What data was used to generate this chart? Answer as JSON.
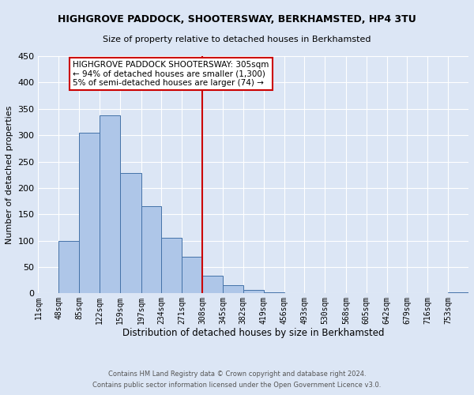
{
  "title": "HIGHGROVE PADDOCK, SHOOTERSWAY, BERKHAMSTED, HP4 3TU",
  "subtitle": "Size of property relative to detached houses in Berkhamsted",
  "xlabel": "Distribution of detached houses by size in Berkhamsted",
  "ylabel": "Number of detached properties",
  "bin_labels": [
    "11sqm",
    "48sqm",
    "85sqm",
    "122sqm",
    "159sqm",
    "197sqm",
    "234sqm",
    "271sqm",
    "308sqm",
    "345sqm",
    "382sqm",
    "419sqm",
    "456sqm",
    "493sqm",
    "530sqm",
    "568sqm",
    "605sqm",
    "642sqm",
    "679sqm",
    "716sqm",
    "753sqm"
  ],
  "bin_edges": [
    11,
    48,
    85,
    122,
    159,
    197,
    234,
    271,
    308,
    345,
    382,
    419,
    456,
    493,
    530,
    568,
    605,
    642,
    679,
    716,
    753,
    790
  ],
  "counts": [
    0,
    99,
    305,
    338,
    228,
    165,
    105,
    70,
    33,
    15,
    6,
    2,
    0,
    0,
    0,
    0,
    0,
    0,
    0,
    0,
    2
  ],
  "bar_color": "#aec6e8",
  "bar_edge_color": "#4472a8",
  "vline_x": 308,
  "vline_color": "#cc0000",
  "ylim": [
    0,
    450
  ],
  "yticks": [
    0,
    50,
    100,
    150,
    200,
    250,
    300,
    350,
    400,
    450
  ],
  "annotation_title": "HIGHGROVE PADDOCK SHOOTERSWAY: 305sqm",
  "annotation_line1": "← 94% of detached houses are smaller (1,300)",
  "annotation_line2": "5% of semi-detached houses are larger (74) →",
  "footer1": "Contains HM Land Registry data © Crown copyright and database right 2024.",
  "footer2": "Contains public sector information licensed under the Open Government Licence v3.0.",
  "background_color": "#dce6f5",
  "plot_background": "#dce6f5"
}
